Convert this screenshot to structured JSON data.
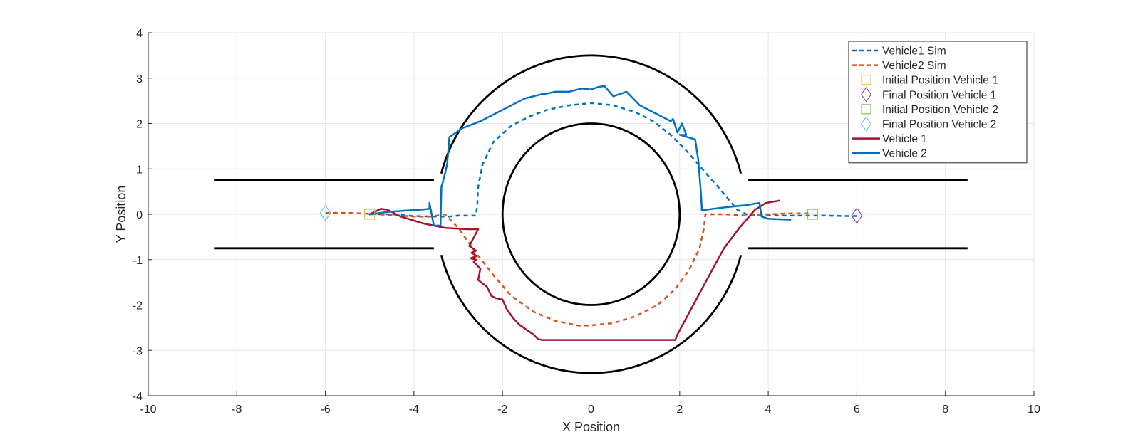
{
  "chart_data": {
    "type": "line",
    "title": "",
    "xlabel": "X Position",
    "ylabel": "Y Position",
    "xlim": [
      -10,
      10
    ],
    "ylim": [
      -4,
      4
    ],
    "xticks": [
      -10,
      -8,
      -6,
      -4,
      -2,
      0,
      2,
      4,
      6,
      8,
      10
    ],
    "yticks": [
      -4,
      -3,
      -2,
      -1,
      0,
      1,
      2,
      3,
      4
    ],
    "grid": true,
    "legend_position": "top-right",
    "colors": {
      "vehicle1_sim": "#0072BD",
      "vehicle2_sim": "#D95319",
      "vehicle1": "#A2142F",
      "vehicle2": "#0072BD",
      "init1": "#EDB120",
      "final1": "#7E2F8E",
      "init2": "#77AC30",
      "final2": "#4DBEEE",
      "track": "#000000"
    },
    "track": {
      "outer_radius": 3.5,
      "inner_radius": 2.0,
      "lanes": [
        {
          "y": 0.75,
          "segments": [
            [
              -8.5,
              -3.55
            ],
            [
              3.55,
              8.5
            ]
          ]
        },
        {
          "y": -0.75,
          "segments": [
            [
              -8.5,
              -3.55
            ],
            [
              3.55,
              8.5
            ]
          ]
        }
      ]
    },
    "series": [
      {
        "name": "Vehicle1 Sim",
        "style": "dashed",
        "x": [
          -5.0,
          -4.5,
          -4.0,
          -3.5,
          -3.2,
          -3.0,
          -2.8,
          -2.6,
          -2.57,
          -2.55,
          -2.45,
          -2.2,
          -1.8,
          -1.4,
          -1.0,
          -0.5,
          0.0,
          0.5,
          1.0,
          1.4,
          1.8,
          2.2,
          2.6,
          3.0,
          3.3,
          3.55,
          3.8,
          4.3,
          4.8,
          5.3,
          5.8,
          6.0
        ],
        "y": [
          0.0,
          0.0,
          -0.04,
          -0.05,
          -0.05,
          -0.03,
          -0.03,
          -0.03,
          0.2,
          0.6,
          1.1,
          1.6,
          1.95,
          2.15,
          2.3,
          2.4,
          2.45,
          2.4,
          2.25,
          2.05,
          1.75,
          1.35,
          0.9,
          0.45,
          0.1,
          -0.02,
          -0.02,
          -0.03,
          -0.03,
          -0.03,
          -0.04,
          -0.04
        ]
      },
      {
        "name": "Vehicle2 Sim",
        "style": "dashed",
        "x": [
          -6.0,
          -5.5,
          -5.0,
          -4.5,
          -4.0,
          -3.6,
          -3.3,
          -3.0,
          -2.6,
          -2.2,
          -1.8,
          -1.3,
          -0.8,
          -0.3,
          0.0,
          0.5,
          1.0,
          1.5,
          1.9,
          2.2,
          2.45,
          2.55,
          2.58,
          3.0,
          3.5,
          4.0,
          4.5,
          5.0
        ],
        "y": [
          0.03,
          0.03,
          0.01,
          -0.02,
          -0.05,
          -0.05,
          0.0,
          -0.3,
          -0.85,
          -1.35,
          -1.8,
          -2.15,
          -2.35,
          -2.45,
          -2.45,
          -2.4,
          -2.25,
          -2.0,
          -1.65,
          -1.25,
          -0.75,
          -0.3,
          0.0,
          0.0,
          -0.03,
          0.0,
          0.02,
          0.02
        ]
      },
      {
        "name": "Vehicle 1",
        "style": "solid",
        "x": [
          -5.0,
          -4.75,
          -4.6,
          -4.3,
          -3.8,
          -3.3,
          -2.8,
          -2.55,
          -2.75,
          -2.6,
          -2.7,
          -2.58,
          -2.72,
          -2.6,
          -2.65,
          -2.5,
          -2.55,
          -2.35,
          -2.25,
          -2.15,
          -2.05,
          -2.0,
          -1.9,
          -1.75,
          -1.6,
          -1.45,
          -1.3,
          -1.2,
          -1.1,
          -0.7,
          0.0,
          0.8,
          1.5,
          1.9,
          1.95,
          2.5,
          3.0,
          3.35,
          3.7,
          3.95,
          4.25
        ],
        "y": [
          0.0,
          0.12,
          0.1,
          -0.05,
          -0.2,
          -0.3,
          -0.33,
          -0.33,
          -0.7,
          -0.8,
          -0.85,
          -0.92,
          -0.97,
          -1.0,
          -1.05,
          -1.2,
          -1.45,
          -1.6,
          -1.8,
          -1.85,
          -1.87,
          -1.88,
          -2.1,
          -2.3,
          -2.45,
          -2.55,
          -2.65,
          -2.75,
          -2.77,
          -2.77,
          -2.77,
          -2.77,
          -2.77,
          -2.77,
          -2.65,
          -1.65,
          -0.75,
          -0.3,
          0.1,
          0.25,
          0.3
        ]
      },
      {
        "name": "Vehicle 2",
        "style": "solid",
        "x": [
          -5.0,
          -4.6,
          -4.2,
          -3.85,
          -3.65,
          -3.65,
          -3.55,
          -3.4,
          -3.38,
          -3.35,
          -3.25,
          -3.2,
          -2.9,
          -2.5,
          -1.5,
          -1.1,
          -1.05,
          -0.8,
          -0.5,
          -0.3,
          -0.2,
          0.0,
          0.15,
          0.3,
          0.5,
          0.8,
          1.1,
          1.5,
          1.8,
          1.85,
          1.95,
          2.05,
          2.15,
          2.0,
          2.35,
          2.42,
          2.47,
          2.5,
          2.5,
          2.6,
          3.0,
          3.5,
          3.8,
          3.85,
          4.0,
          4.5
        ],
        "y": [
          0.0,
          0.05,
          0.08,
          0.1,
          0.12,
          0.25,
          -0.25,
          -0.25,
          0.6,
          0.7,
          1.1,
          1.7,
          1.9,
          2.05,
          2.55,
          2.65,
          2.65,
          2.7,
          2.7,
          2.75,
          2.77,
          2.75,
          2.8,
          2.83,
          2.6,
          2.7,
          2.4,
          2.2,
          2.05,
          2.1,
          1.8,
          2.0,
          1.75,
          1.75,
          1.65,
          1.2,
          0.6,
          0.15,
          0.08,
          0.1,
          0.15,
          0.2,
          0.25,
          -0.05,
          -0.1,
          -0.12
        ]
      }
    ],
    "markers": [
      {
        "name": "Initial Position Vehicle 1",
        "shape": "square",
        "x": -5.0,
        "y": 0.0
      },
      {
        "name": "Final Position Vehicle 1",
        "shape": "diamond",
        "x": 6.0,
        "y": -0.03
      },
      {
        "name": "Initial Position Vehicle 2",
        "shape": "square",
        "x": 5.0,
        "y": 0.0
      },
      {
        "name": "Final Position Vehicle 2",
        "shape": "diamond",
        "x": -6.0,
        "y": 0.03
      }
    ],
    "legend": [
      {
        "label": "Vehicle1 Sim",
        "kind": "line-dashed",
        "color_key": "vehicle1_sim"
      },
      {
        "label": "Vehicle2 Sim",
        "kind": "line-dashed",
        "color_key": "vehicle2_sim"
      },
      {
        "label": "Initial Position Vehicle 1",
        "kind": "square",
        "color_key": "init1"
      },
      {
        "label": "Final Position Vehicle 1",
        "kind": "diamond",
        "color_key": "final1"
      },
      {
        "label": "Initial Position Vehicle 2",
        "kind": "square",
        "color_key": "init2"
      },
      {
        "label": "Final Position Vehicle 2",
        "kind": "diamond",
        "color_key": "final2"
      },
      {
        "label": "Vehicle 1",
        "kind": "line-solid",
        "color_key": "vehicle1"
      },
      {
        "label": "Vehicle 2",
        "kind": "line-solid",
        "color_key": "vehicle2"
      }
    ]
  }
}
